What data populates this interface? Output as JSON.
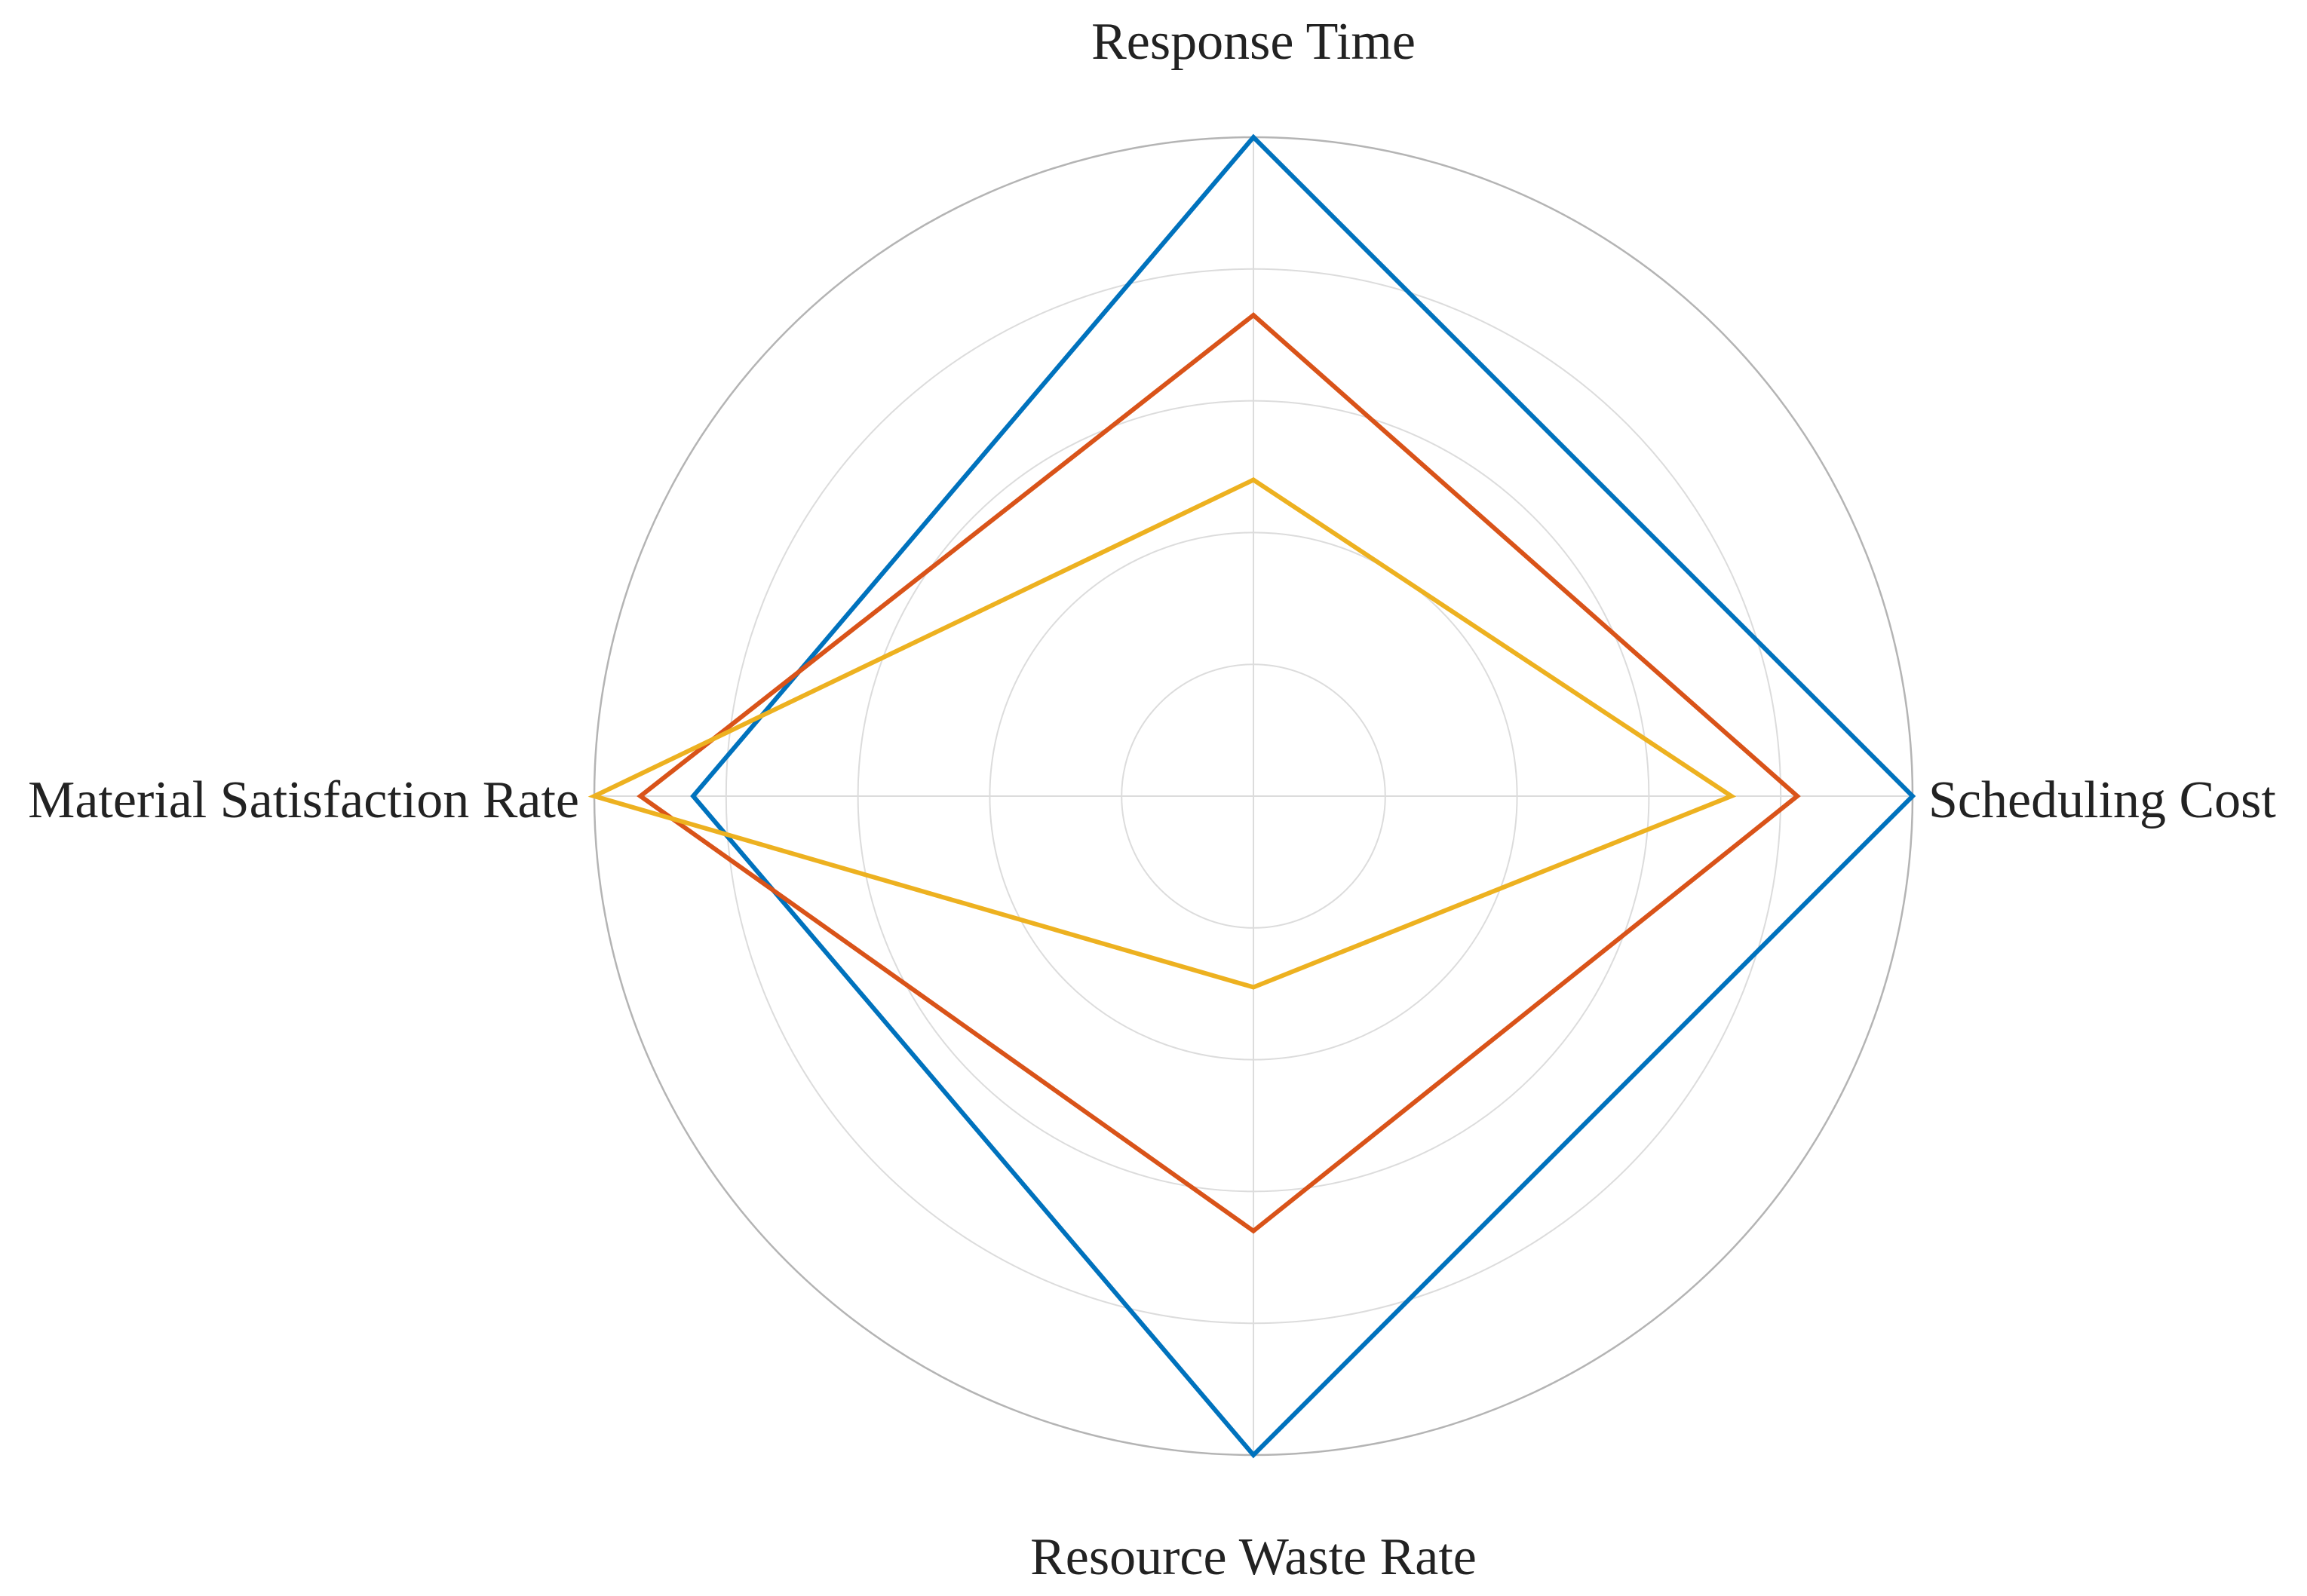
{
  "chart_data": {
    "type": "radar",
    "title": "",
    "axes": [
      "Response Time",
      "Scheduling Cost",
      "Resource Waste Rate",
      "Material Satisfaction Rate"
    ],
    "range": [
      0,
      1
    ],
    "ring_count": 5,
    "grid": true,
    "legend": "none",
    "series": [
      {
        "color": "#0072BD",
        "values": [
          1.0,
          1.0,
          1.0,
          0.85
        ]
      },
      {
        "color": "#D95319",
        "values": [
          0.73,
          0.825,
          0.66,
          0.93
        ]
      },
      {
        "color": "#EDB120",
        "values": [
          0.48,
          0.725,
          0.29,
          1.0
        ]
      }
    ]
  }
}
